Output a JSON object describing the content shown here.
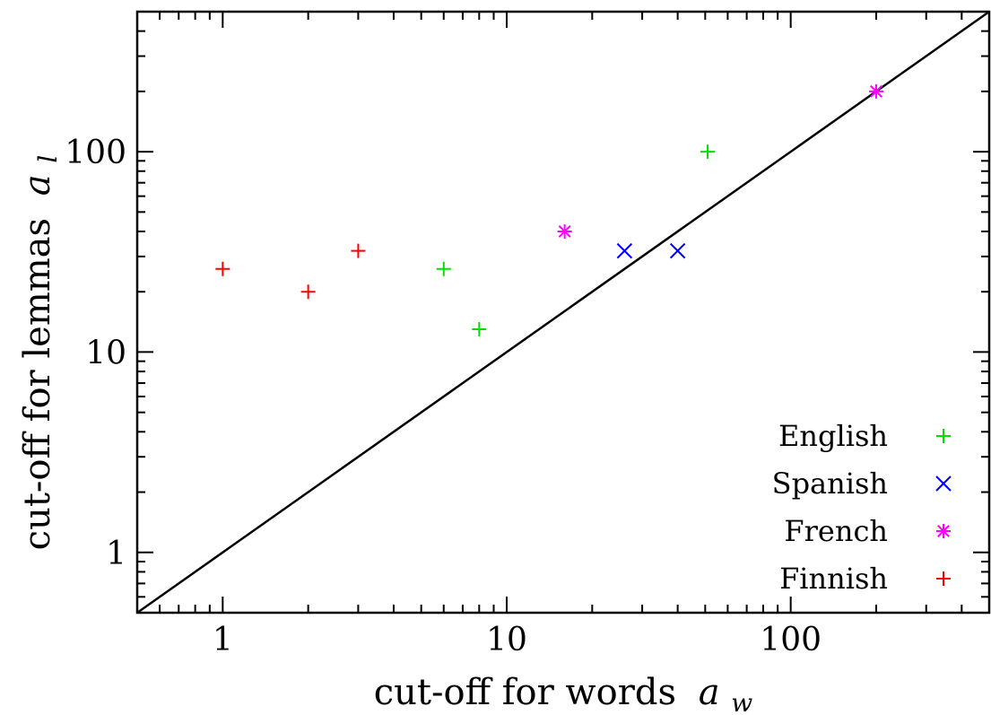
{
  "chart_data": {
    "type": "scatter",
    "xlabel": "cut-off for words",
    "xlabel_symbol": "a",
    "xlabel_subscript": "w",
    "ylabel": "cut-off for lemmas",
    "ylabel_symbol": "a",
    "ylabel_subscript": "l",
    "x_scale": "log",
    "y_scale": "log",
    "xlim": [
      0.5,
      500
    ],
    "ylim": [
      0.5,
      500
    ],
    "x_ticks": [
      {
        "value": 1,
        "label": "1"
      },
      {
        "value": 10,
        "label": "10"
      },
      {
        "value": 100,
        "label": "100"
      }
    ],
    "y_ticks": [
      {
        "value": 1,
        "label": "1"
      },
      {
        "value": 10,
        "label": "10"
      },
      {
        "value": 100,
        "label": "100"
      }
    ],
    "grid": false,
    "legend_position": "bottom-right",
    "reference_line": {
      "type": "identity",
      "x": [
        0.5,
        500
      ],
      "y": [
        0.5,
        500
      ],
      "color": "#000000"
    },
    "series": [
      {
        "name": "English",
        "marker": "plus",
        "color": "#00e000",
        "points": [
          {
            "x": 6,
            "y": 26
          },
          {
            "x": 8,
            "y": 13
          },
          {
            "x": 51,
            "y": 100
          }
        ]
      },
      {
        "name": "Spanish",
        "marker": "cross",
        "color": "#0000ff",
        "points": [
          {
            "x": 26,
            "y": 32
          },
          {
            "x": 40,
            "y": 32
          }
        ]
      },
      {
        "name": "French",
        "marker": "star",
        "color": "#ff00ff",
        "points": [
          {
            "x": 16,
            "y": 40
          },
          {
            "x": 200,
            "y": 200
          }
        ]
      },
      {
        "name": "Finnish",
        "marker": "plus",
        "color": "#ff0000",
        "points": [
          {
            "x": 1,
            "y": 26
          },
          {
            "x": 2,
            "y": 20
          },
          {
            "x": 3,
            "y": 32
          }
        ]
      }
    ]
  }
}
